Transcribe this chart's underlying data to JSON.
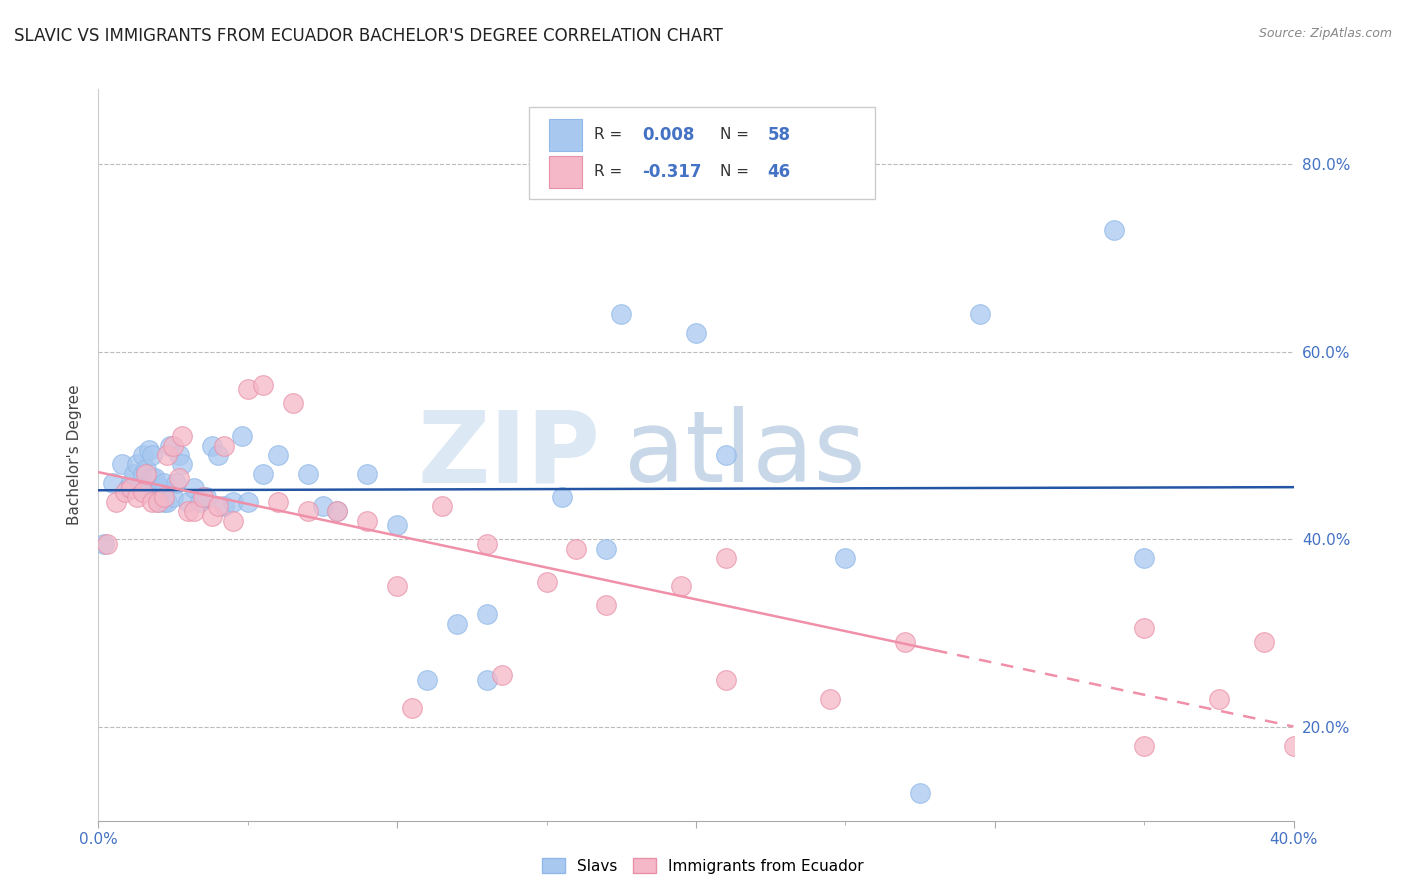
{
  "title": "SLAVIC VS IMMIGRANTS FROM ECUADOR BACHELOR'S DEGREE CORRELATION CHART",
  "source": "Source: ZipAtlas.com",
  "xlim": [
    0.0,
    0.4
  ],
  "ylim": [
    0.1,
    0.88
  ],
  "ylabel": "Bachelor's Degree",
  "slavs_color": "#a8c8f0",
  "ecuador_color": "#f5b8c8",
  "slavs_line_color": "#2455a4",
  "ecuador_line_color": "#f090a8",
  "legend_r1": "R = 0.008",
  "legend_n1": "N = 58",
  "legend_r2": "R = -0.317",
  "legend_n2": "N = 46",
  "slavs_x": [
    0.002,
    0.005,
    0.008,
    0.01,
    0.011,
    0.012,
    0.013,
    0.014,
    0.015,
    0.015,
    0.016,
    0.016,
    0.017,
    0.018,
    0.018,
    0.019,
    0.02,
    0.02,
    0.021,
    0.022,
    0.022,
    0.023,
    0.024,
    0.025,
    0.026,
    0.027,
    0.028,
    0.03,
    0.032,
    0.034,
    0.036,
    0.038,
    0.04,
    0.042,
    0.045,
    0.048,
    0.05,
    0.055,
    0.06,
    0.07,
    0.075,
    0.08,
    0.09,
    0.1,
    0.11,
    0.12,
    0.13,
    0.155,
    0.17,
    0.2,
    0.21,
    0.25,
    0.275,
    0.295,
    0.34,
    0.35,
    0.175,
    0.13
  ],
  "slavs_y": [
    0.395,
    0.46,
    0.48,
    0.455,
    0.46,
    0.47,
    0.48,
    0.455,
    0.47,
    0.49,
    0.455,
    0.475,
    0.495,
    0.465,
    0.49,
    0.465,
    0.45,
    0.44,
    0.455,
    0.44,
    0.46,
    0.44,
    0.5,
    0.445,
    0.46,
    0.49,
    0.48,
    0.44,
    0.455,
    0.44,
    0.445,
    0.5,
    0.49,
    0.435,
    0.44,
    0.51,
    0.44,
    0.47,
    0.49,
    0.47,
    0.435,
    0.43,
    0.47,
    0.415,
    0.25,
    0.31,
    0.32,
    0.445,
    0.39,
    0.62,
    0.49,
    0.38,
    0.13,
    0.64,
    0.73,
    0.38,
    0.64,
    0.25
  ],
  "ecuador_x": [
    0.003,
    0.006,
    0.009,
    0.011,
    0.013,
    0.015,
    0.016,
    0.018,
    0.02,
    0.022,
    0.023,
    0.025,
    0.027,
    0.028,
    0.03,
    0.032,
    0.035,
    0.038,
    0.04,
    0.042,
    0.045,
    0.05,
    0.055,
    0.06,
    0.065,
    0.07,
    0.08,
    0.09,
    0.1,
    0.115,
    0.13,
    0.15,
    0.16,
    0.17,
    0.195,
    0.21,
    0.245,
    0.27,
    0.35,
    0.375,
    0.105,
    0.135,
    0.21,
    0.35,
    0.4,
    0.39
  ],
  "ecuador_y": [
    0.395,
    0.44,
    0.45,
    0.455,
    0.445,
    0.45,
    0.47,
    0.44,
    0.44,
    0.445,
    0.49,
    0.5,
    0.465,
    0.51,
    0.43,
    0.43,
    0.445,
    0.425,
    0.435,
    0.5,
    0.42,
    0.56,
    0.565,
    0.44,
    0.545,
    0.43,
    0.43,
    0.42,
    0.35,
    0.435,
    0.395,
    0.355,
    0.39,
    0.33,
    0.35,
    0.38,
    0.23,
    0.29,
    0.305,
    0.23,
    0.22,
    0.255,
    0.25,
    0.18,
    0.18,
    0.29
  ]
}
